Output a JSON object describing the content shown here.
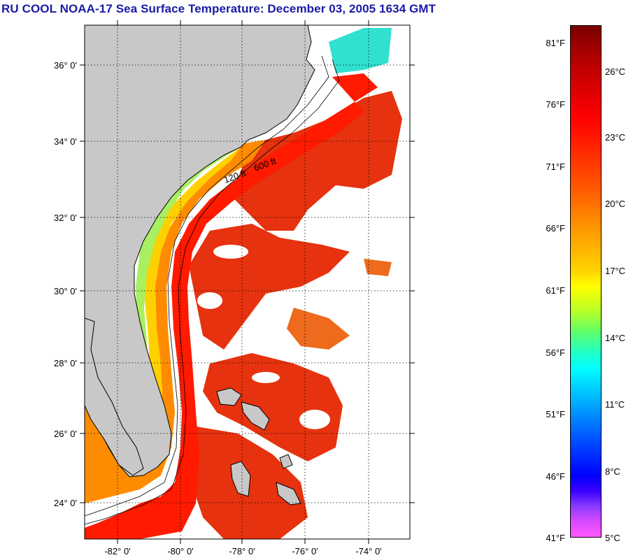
{
  "title": "RU COOL  NOAA-17  Sea Surface Temperature:  December 03, 2005 1634 GMT",
  "map": {
    "lat_labels": [
      "36° 0'",
      "34° 0'",
      "32° 0'",
      "30° 0'",
      "28° 0'",
      "26° 0'",
      "24° 0'"
    ],
    "lon_labels": [
      "-82° 0'",
      "-80° 0'",
      "-78° 0'",
      "-76° 0'",
      "-74° 0'"
    ],
    "isobath_labels": [
      "120 ft",
      "600 ft"
    ],
    "colors": {
      "land": "#c8c8c8",
      "cloud": "#ffffff",
      "gulf_stream": "#ff1a00",
      "offshore": "#e83a10",
      "shelf_warm": "#ff8800",
      "shelf_mid": "#ffcc00",
      "shelf_cool": "#a8f060",
      "coastal_cold": "#30e8c0"
    }
  },
  "colorbar": {
    "fahrenheit": [
      "81°F",
      "76°F",
      "71°F",
      "66°F",
      "61°F",
      "56°F",
      "51°F",
      "46°F",
      "41°F"
    ],
    "celsius": [
      "26°C",
      "23°C",
      "20°C",
      "17°C",
      "14°C",
      "11°C",
      "8°C",
      "5°C"
    ]
  }
}
